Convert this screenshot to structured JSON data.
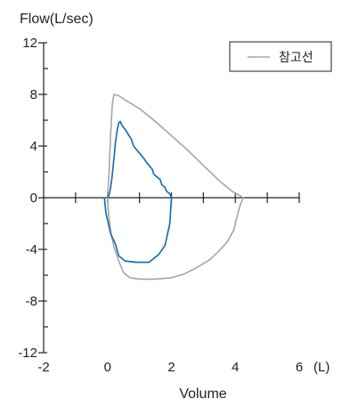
{
  "chart_data": {
    "type": "line",
    "ylabel": "Flow(L/sec)",
    "xlabel": "Volume",
    "x_unit_label": "(L)",
    "xlim": [
      -2,
      6
    ],
    "ylim": [
      -12,
      12
    ],
    "x_ticks": [
      -2,
      0,
      2,
      4,
      6
    ],
    "y_ticks": [
      12,
      8,
      4,
      0,
      -4,
      -8,
      -12
    ],
    "x_tick_labels": [
      "-2",
      "0",
      "2",
      "4",
      "6"
    ],
    "y_tick_labels": [
      "12",
      "8",
      "4",
      "0",
      "-4",
      "-8",
      "-12"
    ],
    "grid": false,
    "legend": {
      "position": "top-right",
      "entries": [
        "참고선"
      ]
    },
    "series": [
      {
        "name": "참고선",
        "color": "#a6a6a6",
        "points": [
          [
            0.0,
            0.0
          ],
          [
            0.05,
            2.0
          ],
          [
            0.1,
            5.0
          ],
          [
            0.15,
            7.2
          ],
          [
            0.2,
            8.0
          ],
          [
            0.35,
            7.9
          ],
          [
            0.6,
            7.5
          ],
          [
            1.0,
            6.9
          ],
          [
            1.5,
            5.9
          ],
          [
            2.0,
            4.8
          ],
          [
            2.5,
            3.7
          ],
          [
            3.0,
            2.5
          ],
          [
            3.5,
            1.3
          ],
          [
            3.9,
            0.5
          ],
          [
            4.15,
            0.15
          ],
          [
            4.25,
            0.0
          ],
          [
            4.15,
            -0.6
          ],
          [
            4.05,
            -1.5
          ],
          [
            3.95,
            -2.5
          ],
          [
            3.75,
            -3.4
          ],
          [
            3.5,
            -4.1
          ],
          [
            3.2,
            -4.8
          ],
          [
            2.8,
            -5.4
          ],
          [
            2.4,
            -5.9
          ],
          [
            2.0,
            -6.2
          ],
          [
            1.5,
            -6.3
          ],
          [
            1.0,
            -6.3
          ],
          [
            0.7,
            -6.2
          ],
          [
            0.5,
            -5.8
          ],
          [
            0.35,
            -4.9
          ],
          [
            0.2,
            -3.8
          ],
          [
            0.1,
            -2.6
          ],
          [
            0.03,
            -1.2
          ],
          [
            0.0,
            0.0
          ]
        ]
      },
      {
        "name": "",
        "color": "#1f6fb2",
        "points": [
          [
            -0.1,
            0.0
          ],
          [
            -0.05,
            -1.2
          ],
          [
            0.1,
            -2.8
          ],
          [
            0.25,
            -3.6
          ],
          [
            0.35,
            -4.5
          ],
          [
            0.55,
            -4.9
          ],
          [
            0.9,
            -5.0
          ],
          [
            1.3,
            -5.0
          ],
          [
            1.6,
            -4.4
          ],
          [
            1.8,
            -3.7
          ],
          [
            1.95,
            -2.0
          ],
          [
            2.0,
            0.0
          ],
          [
            1.95,
            0.3
          ],
          [
            1.85,
            0.5
          ],
          [
            1.8,
            0.8
          ],
          [
            1.7,
            1.0
          ],
          [
            1.65,
            1.4
          ],
          [
            1.55,
            1.6
          ],
          [
            1.45,
            1.8
          ],
          [
            1.4,
            2.2
          ],
          [
            1.3,
            2.5
          ],
          [
            1.2,
            2.8
          ],
          [
            1.15,
            3.0
          ],
          [
            1.05,
            3.3
          ],
          [
            0.95,
            3.6
          ],
          [
            0.85,
            3.9
          ],
          [
            0.8,
            4.1
          ],
          [
            0.75,
            4.5
          ],
          [
            0.65,
            4.9
          ],
          [
            0.55,
            5.3
          ],
          [
            0.45,
            5.6
          ],
          [
            0.4,
            5.9
          ],
          [
            0.35,
            5.8
          ],
          [
            0.3,
            5.2
          ],
          [
            0.25,
            4.3
          ],
          [
            0.2,
            3.0
          ],
          [
            0.15,
            1.8
          ],
          [
            0.1,
            0.8
          ],
          [
            0.05,
            0.2
          ],
          [
            0.0,
            0.0
          ]
        ]
      }
    ]
  }
}
